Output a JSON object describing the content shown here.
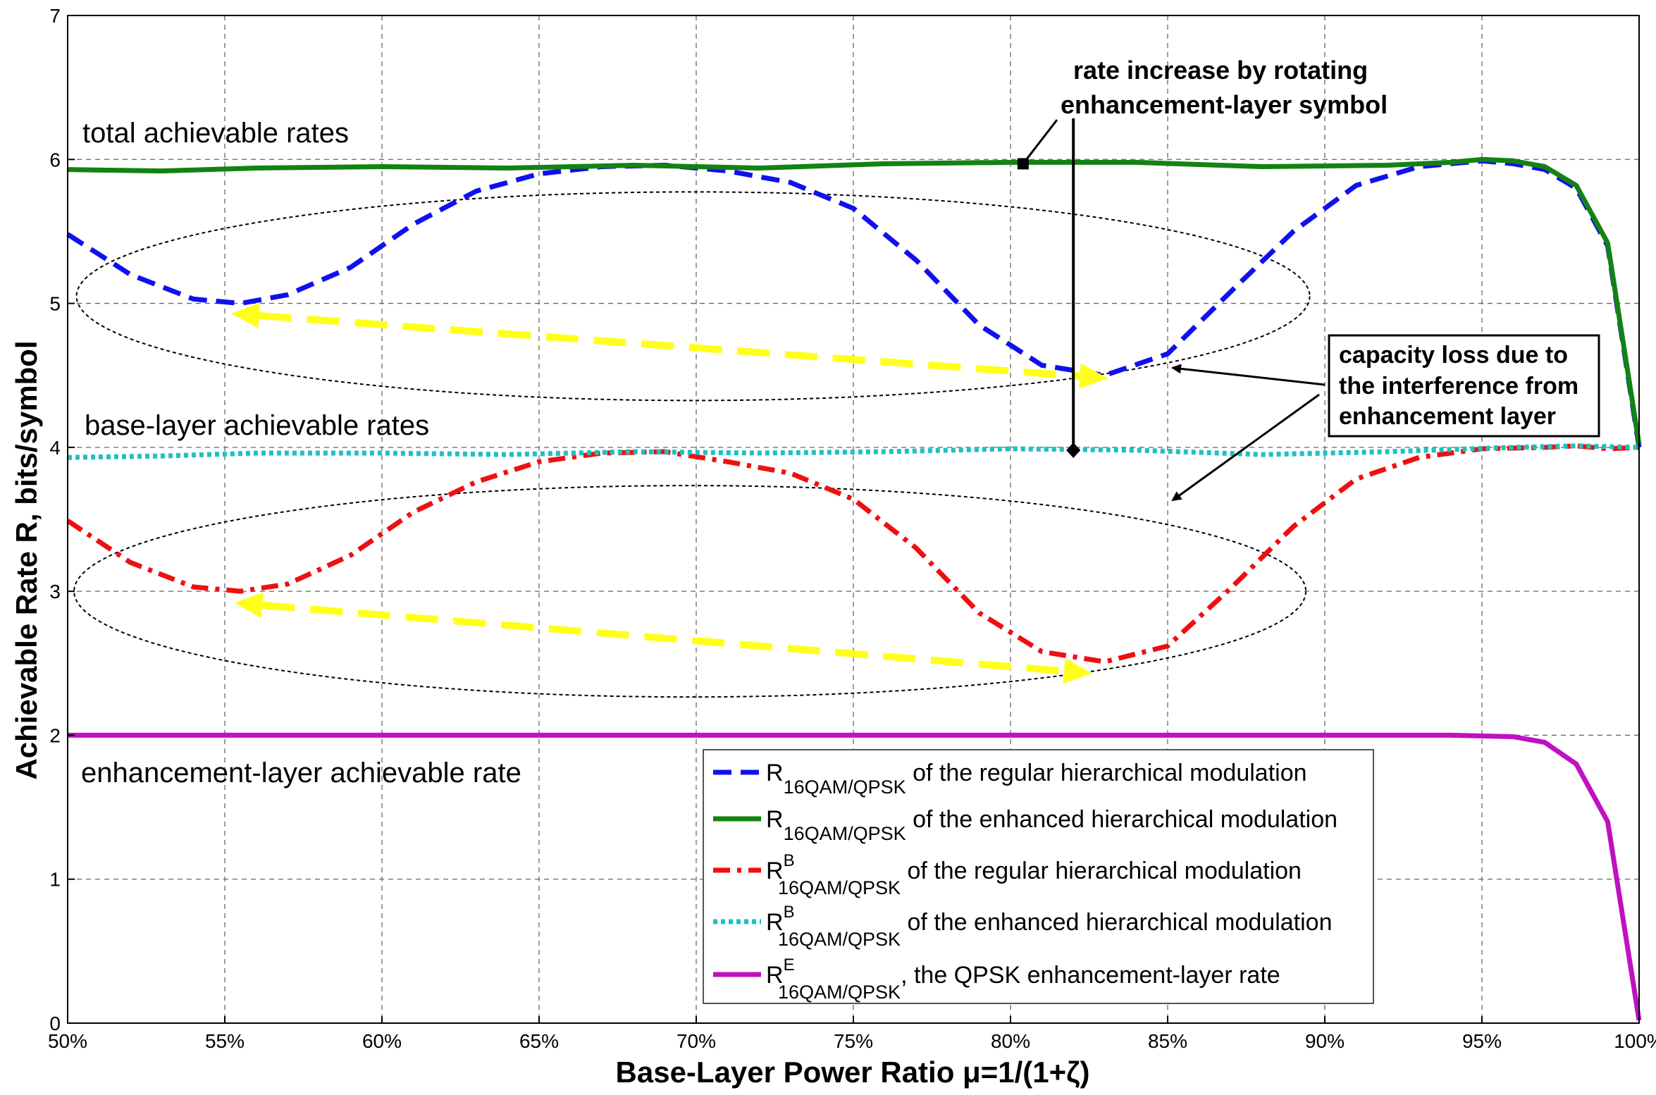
{
  "chart_data": {
    "type": "line",
    "xlabel": "Base-Layer Power Ratio μ=1/(1+ζ)",
    "ylabel": "Achievable Rate R, bits/symbol",
    "xlim": [
      50,
      100
    ],
    "ylim": [
      0,
      7
    ],
    "grid": true,
    "legend_position": "bottom-right",
    "x_ticks": [
      "50%",
      "55%",
      "60%",
      "65%",
      "70%",
      "75%",
      "80%",
      "85%",
      "90%",
      "95%",
      "100%"
    ],
    "y_ticks": [
      "0",
      "1",
      "2",
      "3",
      "4",
      "5",
      "6",
      "7"
    ],
    "series": [
      {
        "label": {
          "main": "R",
          "sup": "",
          "sub": "16QAM/QPSK",
          "rest": " of the regular hierarchical modulation"
        },
        "color": "#1010ee",
        "style": "dashed",
        "x": [
          50,
          52,
          54,
          55.5,
          57,
          59,
          61,
          63,
          65,
          67,
          69,
          71,
          73,
          75,
          77,
          79,
          81,
          83,
          85,
          87,
          89,
          91,
          93,
          95,
          96,
          97,
          98,
          99,
          100
        ],
        "y": [
          5.48,
          5.2,
          5.03,
          5.0,
          5.06,
          5.25,
          5.55,
          5.78,
          5.9,
          5.95,
          5.96,
          5.92,
          5.84,
          5.66,
          5.3,
          4.85,
          4.57,
          4.5,
          4.65,
          5.08,
          5.5,
          5.82,
          5.95,
          5.99,
          5.97,
          5.93,
          5.8,
          5.4,
          4.0
        ]
      },
      {
        "label": {
          "main": "R",
          "sup": "",
          "sub": "16QAM/QPSK",
          "rest": " of the enhanced hierarchical modulation"
        },
        "color": "#138213",
        "style": "solid",
        "x": [
          50,
          53,
          56,
          60,
          64,
          68,
          72,
          76,
          80,
          84,
          88,
          92,
          94,
          95,
          96,
          97,
          98,
          99,
          100
        ],
        "y": [
          5.93,
          5.92,
          5.94,
          5.95,
          5.94,
          5.96,
          5.94,
          5.97,
          5.98,
          5.98,
          5.95,
          5.96,
          5.98,
          6.0,
          5.99,
          5.95,
          5.82,
          5.42,
          4.02
        ]
      },
      {
        "label": {
          "main": "R",
          "sup": "B",
          "sub": "16QAM/QPSK",
          "rest": " of the regular hierarchical modulation"
        },
        "color": "#ee1010",
        "style": "dashdot",
        "x": [
          50,
          52,
          54,
          55.5,
          57,
          59,
          61,
          63,
          65,
          67,
          69,
          71,
          73,
          75,
          77,
          79,
          81,
          83,
          85,
          87,
          89,
          91,
          93,
          95,
          97,
          98,
          99,
          100
        ],
        "y": [
          3.49,
          3.2,
          3.03,
          3.0,
          3.05,
          3.25,
          3.55,
          3.76,
          3.9,
          3.96,
          3.97,
          3.9,
          3.82,
          3.64,
          3.3,
          2.85,
          2.58,
          2.51,
          2.62,
          3.02,
          3.45,
          3.78,
          3.93,
          3.99,
          4.0,
          4.01,
          3.99,
          4.0
        ]
      },
      {
        "label": {
          "main": "R",
          "sup": "B",
          "sub": "16QAM/QPSK",
          "rest": " of the enhanced hierarchical modulation"
        },
        "color": "#20c0c0",
        "style": "dotted",
        "x": [
          50,
          53,
          56,
          60,
          64,
          68,
          72,
          76,
          80,
          84,
          88,
          92,
          96,
          98,
          100
        ],
        "y": [
          3.93,
          3.94,
          3.96,
          3.96,
          3.95,
          3.97,
          3.96,
          3.97,
          3.99,
          3.98,
          3.95,
          3.97,
          4.0,
          4.01,
          4.0
        ]
      },
      {
        "label": {
          "main": "R",
          "sup": "E",
          "sub": "16QAM/QPSK",
          "rest": ", the QPSK enhancement-layer rate"
        },
        "color": "#c010c0",
        "style": "solid",
        "x": [
          50,
          60,
          70,
          80,
          90,
          94,
          96,
          97,
          98,
          99,
          100
        ],
        "y": [
          2.0,
          2.0,
          2.0,
          2.0,
          2.0,
          2.0,
          1.99,
          1.95,
          1.8,
          1.4,
          0.02
        ]
      }
    ],
    "annotations": {
      "total_rates": "total achievable rates",
      "base_rates": "base-layer achievable rates",
      "enh_rate": "enhancement-layer achievable rate",
      "rotate_line1": "rate increase by rotating",
      "rotate_line2": "enhancement-layer symbol",
      "loss_line1": "capacity loss due to",
      "loss_line2": "the interference from",
      "loss_line3": "enhancement layer"
    }
  }
}
